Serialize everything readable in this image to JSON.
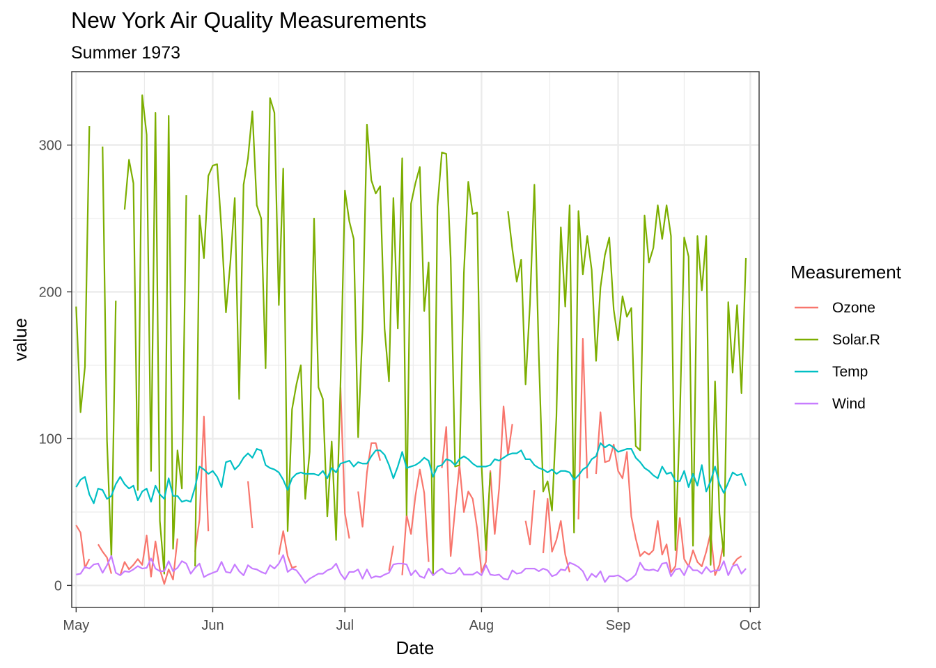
{
  "chart_data": {
    "type": "line",
    "title": "New York Air Quality Measurements",
    "subtitle": "Summer 1973",
    "xlabel": "Date",
    "ylabel": "value",
    "xlim": [
      "1973-04-30",
      "1973-10-03"
    ],
    "ylim": [
      -15,
      350
    ],
    "x_ticks": [
      {
        "date": "1973-05-01",
        "label": "May"
      },
      {
        "date": "1973-06-01",
        "label": "Jun"
      },
      {
        "date": "1973-07-01",
        "label": "Jul"
      },
      {
        "date": "1973-08-01",
        "label": "Aug"
      },
      {
        "date": "1973-09-01",
        "label": "Sep"
      },
      {
        "date": "1973-10-01",
        "label": "Oct"
      }
    ],
    "y_ticks": [
      0,
      100,
      200,
      300
    ],
    "grid": true,
    "legend_title": "Measurement",
    "legend_position": "right",
    "x_start": "1973-05-01",
    "x_end": "1973-09-30",
    "series": [
      {
        "name": "Ozone",
        "color": "#F8766D",
        "values": [
          41,
          36,
          12,
          18,
          null,
          28,
          23,
          19,
          8,
          null,
          7,
          16,
          11,
          14,
          18,
          14,
          34,
          6,
          30,
          11,
          1,
          11,
          4,
          32,
          null,
          null,
          null,
          23,
          45,
          115,
          37,
          null,
          null,
          null,
          null,
          null,
          null,
          29,
          null,
          71,
          39,
          null,
          null,
          23,
          null,
          null,
          21,
          37,
          20,
          12,
          13,
          null,
          null,
          null,
          null,
          null,
          null,
          null,
          null,
          null,
          135,
          49,
          32,
          null,
          64,
          40,
          77,
          97,
          97,
          85,
          null,
          10,
          27,
          null,
          7,
          48,
          35,
          61,
          79,
          63,
          16,
          null,
          null,
          80,
          108,
          20,
          52,
          82,
          50,
          64,
          59,
          39,
          9,
          16,
          78,
          35,
          66,
          122,
          89,
          110,
          null,
          null,
          44,
          28,
          65,
          null,
          22,
          59,
          23,
          31,
          44,
          21,
          9,
          null,
          45,
          168,
          73,
          null,
          76,
          118,
          84,
          85,
          96,
          78,
          73,
          91,
          47,
          32,
          20,
          23,
          21,
          24,
          44,
          21,
          28,
          9,
          13,
          46,
          18,
          13,
          24,
          16,
          13,
          23,
          36,
          7,
          14,
          30,
          null,
          14,
          18,
          20
        ]
      },
      {
        "name": "Solar.R",
        "color": "#7CAE00",
        "values": [
          190,
          118,
          149,
          313,
          null,
          null,
          299,
          99,
          19,
          194,
          null,
          256,
          290,
          274,
          65,
          334,
          307,
          78,
          322,
          44,
          8,
          320,
          25,
          92,
          66,
          266,
          null,
          13,
          252,
          223,
          279,
          286,
          287,
          242,
          186,
          220,
          264,
          127,
          273,
          291,
          323,
          259,
          250,
          148,
          332,
          322,
          191,
          284,
          37,
          120,
          137,
          150,
          59,
          91,
          250,
          135,
          127,
          47,
          98,
          31,
          138,
          269,
          248,
          236,
          101,
          175,
          314,
          276,
          267,
          272,
          175,
          139,
          264,
          175,
          291,
          48,
          260,
          274,
          285,
          187,
          220,
          7,
          258,
          295,
          294,
          223,
          81,
          82,
          213,
          275,
          253,
          254,
          83,
          24,
          77,
          null,
          null,
          null,
          255,
          229,
          207,
          222,
          137,
          192,
          273,
          157,
          64,
          71,
          51,
          115,
          244,
          190,
          259,
          36,
          255,
          212,
          238,
          215,
          153,
          203,
          225,
          237,
          188,
          167,
          197,
          183,
          189,
          95,
          92,
          252,
          220,
          230,
          259,
          236,
          259,
          238,
          24,
          112,
          237,
          224,
          27,
          238,
          201,
          238,
          14,
          139,
          49,
          20,
          193,
          145,
          191,
          131,
          223
        ]
      },
      {
        "name": "Temp",
        "color": "#00BFC4",
        "values": [
          67,
          72,
          74,
          62,
          56,
          66,
          65,
          59,
          61,
          69,
          74,
          69,
          66,
          68,
          58,
          64,
          66,
          57,
          68,
          62,
          59,
          73,
          61,
          61,
          57,
          58,
          57,
          67,
          81,
          79,
          76,
          78,
          74,
          67,
          84,
          85,
          79,
          82,
          87,
          90,
          87,
          93,
          92,
          82,
          80,
          79,
          77,
          72,
          65,
          73,
          76,
          77,
          76,
          76,
          76,
          75,
          78,
          73,
          80,
          77,
          83,
          84,
          85,
          81,
          84,
          83,
          83,
          88,
          92,
          92,
          89,
          82,
          73,
          81,
          91,
          80,
          81,
          82,
          84,
          87,
          85,
          74,
          81,
          82,
          86,
          85,
          82,
          86,
          88,
          86,
          83,
          81,
          81,
          81,
          82,
          86,
          85,
          87,
          89,
          90,
          90,
          92,
          86,
          86,
          82,
          80,
          79,
          77,
          79,
          76,
          78,
          78,
          77,
          72,
          75,
          79,
          81,
          86,
          88,
          97,
          94,
          96,
          94,
          91,
          92,
          93,
          93,
          87,
          84,
          80,
          78,
          75,
          73,
          81,
          76,
          77,
          71,
          71,
          78,
          67,
          76,
          68,
          82,
          64,
          71,
          81,
          69,
          63,
          70,
          77,
          75,
          76,
          68
        ]
      },
      {
        "name": "Wind",
        "color": "#C77CFF",
        "values": [
          7.4,
          8.0,
          12.6,
          11.5,
          14.3,
          14.9,
          8.6,
          13.8,
          20.1,
          8.6,
          6.9,
          9.7,
          9.2,
          10.9,
          13.2,
          11.5,
          12.0,
          18.4,
          11.5,
          9.7,
          9.7,
          16.6,
          9.7,
          12.0,
          16.6,
          14.9,
          8.0,
          12.0,
          14.9,
          5.7,
          7.4,
          8.6,
          9.7,
          16.1,
          9.2,
          8.6,
          14.3,
          9.7,
          6.9,
          13.8,
          11.5,
          10.9,
          9.2,
          8.0,
          13.8,
          11.5,
          14.9,
          20.7,
          9.2,
          11.5,
          10.3,
          6.3,
          1.7,
          4.6,
          6.3,
          8.0,
          8.0,
          10.3,
          11.5,
          14.9,
          8.0,
          4.1,
          9.2,
          9.2,
          10.9,
          4.6,
          10.9,
          5.1,
          6.3,
          5.7,
          7.4,
          8.6,
          14.3,
          14.9,
          14.9,
          14.3,
          6.9,
          10.3,
          6.3,
          5.1,
          11.5,
          6.9,
          9.7,
          11.5,
          8.6,
          8.0,
          8.6,
          12.0,
          7.4,
          7.4,
          7.4,
          9.2,
          6.9,
          13.8,
          7.4,
          6.9,
          7.4,
          4.6,
          4.0,
          10.3,
          8.0,
          8.6,
          11.5,
          11.5,
          11.5,
          9.7,
          11.5,
          10.3,
          6.3,
          7.4,
          10.9,
          10.3,
          15.5,
          14.3,
          12.6,
          9.7,
          3.4,
          8.0,
          5.7,
          9.7,
          2.3,
          6.3,
          6.3,
          6.9,
          5.1,
          2.8,
          4.6,
          7.4,
          15.5,
          10.9,
          10.3,
          10.9,
          9.7,
          14.9,
          15.5,
          6.3,
          10.9,
          11.5,
          6.9,
          13.8,
          10.3,
          10.3,
          8.0,
          12.6,
          9.2,
          10.3,
          10.3,
          16.6,
          6.9,
          13.2,
          14.3,
          8.0,
          11.5
        ]
      }
    ]
  }
}
